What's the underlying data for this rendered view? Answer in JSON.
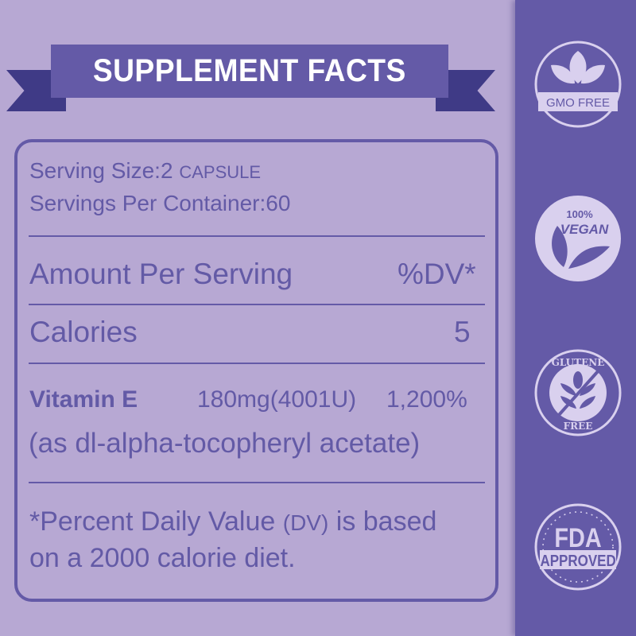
{
  "header": {
    "title": "SUPPLEMENT FACTS"
  },
  "facts": {
    "serving_size_label": "Serving Size:2",
    "serving_size_unit": "CAPSULE",
    "servings_per_container": "Servings Per Container:60",
    "amount_per_serving": "Amount Per Serving",
    "dv_header": "%DV*",
    "calories_label": "Calories",
    "calories_value": "5",
    "nutrient_name": "Vitamin E",
    "nutrient_amount": "180mg(4001U)",
    "nutrient_dv": "1,200%",
    "nutrient_source": "(as dl-alpha-tocopheryl acetate)",
    "footnote_1a": "*Percent Daily Value",
    "footnote_1b": "(DV)",
    "footnote_1c": "is based",
    "footnote_2": "on a 2000 calorie diet."
  },
  "badges": [
    {
      "icon": "leaves-icon",
      "text": "GMO FREE"
    },
    {
      "icon": "vegan-leaf-icon",
      "text_top": "100%",
      "text_bottom": "VEGAN"
    },
    {
      "icon": "wheat-icon",
      "text_top": "GLUTENE",
      "text_bottom": "FREE"
    },
    {
      "icon": "stamp-icon",
      "text_top": "FDA",
      "text_bottom": "APPROVED"
    }
  ],
  "colors": {
    "background": "#b7a8d3",
    "primary": "#645aa7",
    "ribbon_tail": "#3f3a86",
    "badge": "#d9d0ee"
  }
}
